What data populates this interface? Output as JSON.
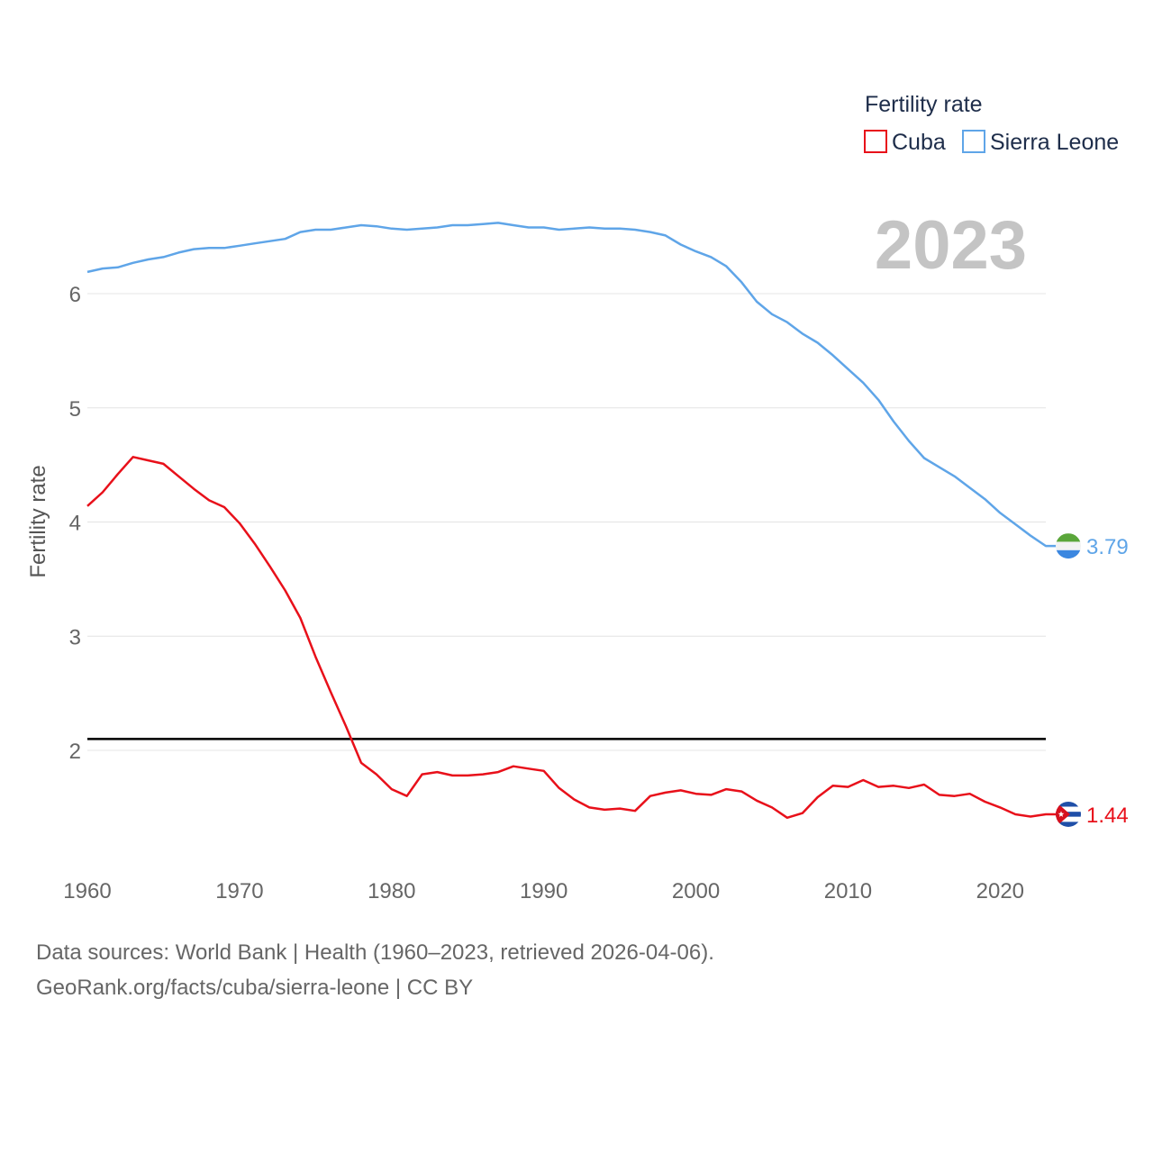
{
  "chart_data": {
    "type": "line",
    "title": "",
    "year_label": "2023",
    "xlabel": "",
    "ylabel": "Fertility rate",
    "xlim": [
      1960,
      2023
    ],
    "ylim": [
      1.0,
      6.75
    ],
    "x_ticks": [
      1960,
      1970,
      1980,
      1990,
      2000,
      2010,
      2020
    ],
    "y_ticks": [
      2,
      3,
      4,
      5,
      6
    ],
    "grid": true,
    "reference_line": {
      "value": 2.1
    },
    "legend": {
      "title": "Fertility rate",
      "placement": "top-right"
    },
    "x": [
      1960,
      1961,
      1962,
      1963,
      1964,
      1965,
      1966,
      1967,
      1968,
      1969,
      1970,
      1971,
      1972,
      1973,
      1974,
      1975,
      1976,
      1977,
      1978,
      1979,
      1980,
      1981,
      1982,
      1983,
      1984,
      1985,
      1986,
      1987,
      1988,
      1989,
      1990,
      1991,
      1992,
      1993,
      1994,
      1995,
      1996,
      1997,
      1998,
      1999,
      2000,
      2001,
      2002,
      2003,
      2004,
      2005,
      2006,
      2007,
      2008,
      2009,
      2010,
      2011,
      2012,
      2013,
      2014,
      2015,
      2016,
      2017,
      2018,
      2019,
      2020,
      2021,
      2022,
      2023
    ],
    "series": [
      {
        "name": "Cuba",
        "color": "#e8101a",
        "end_label": "1.44",
        "flag": "cuba-flag-icon",
        "values": [
          4.14,
          4.26,
          4.42,
          4.57,
          4.54,
          4.51,
          4.4,
          4.29,
          4.19,
          4.13,
          3.99,
          3.81,
          3.61,
          3.4,
          3.16,
          2.82,
          2.51,
          2.21,
          1.89,
          1.79,
          1.66,
          1.6,
          1.79,
          1.81,
          1.78,
          1.78,
          1.79,
          1.81,
          1.86,
          1.84,
          1.82,
          1.67,
          1.57,
          1.5,
          1.48,
          1.49,
          1.47,
          1.6,
          1.63,
          1.65,
          1.62,
          1.61,
          1.66,
          1.64,
          1.56,
          1.5,
          1.41,
          1.45,
          1.59,
          1.69,
          1.68,
          1.74,
          1.68,
          1.69,
          1.67,
          1.7,
          1.61,
          1.6,
          1.62,
          1.55,
          1.5,
          1.44,
          1.42,
          1.44
        ]
      },
      {
        "name": "Sierra Leone",
        "color": "#5fa5e8",
        "end_label": "3.79",
        "flag": "sierra-leone-flag-icon",
        "values": [
          6.19,
          6.22,
          6.23,
          6.27,
          6.3,
          6.32,
          6.36,
          6.39,
          6.4,
          6.4,
          6.42,
          6.44,
          6.46,
          6.48,
          6.54,
          6.56,
          6.56,
          6.58,
          6.6,
          6.59,
          6.57,
          6.56,
          6.57,
          6.58,
          6.6,
          6.6,
          6.61,
          6.62,
          6.6,
          6.58,
          6.58,
          6.56,
          6.57,
          6.58,
          6.57,
          6.57,
          6.56,
          6.54,
          6.51,
          6.43,
          6.37,
          6.32,
          6.24,
          6.1,
          5.93,
          5.82,
          5.75,
          5.65,
          5.57,
          5.46,
          5.34,
          5.22,
          5.07,
          4.88,
          4.71,
          4.56,
          4.48,
          4.4,
          4.3,
          4.2,
          4.08,
          3.98,
          3.88,
          3.79
        ]
      }
    ]
  },
  "footer": {
    "line1": "Data sources: World Bank | Health (1960–2023, retrieved 2026-04-06).",
    "line2": "GeoRank.org/facts/cuba/sierra-leone | CC BY"
  }
}
